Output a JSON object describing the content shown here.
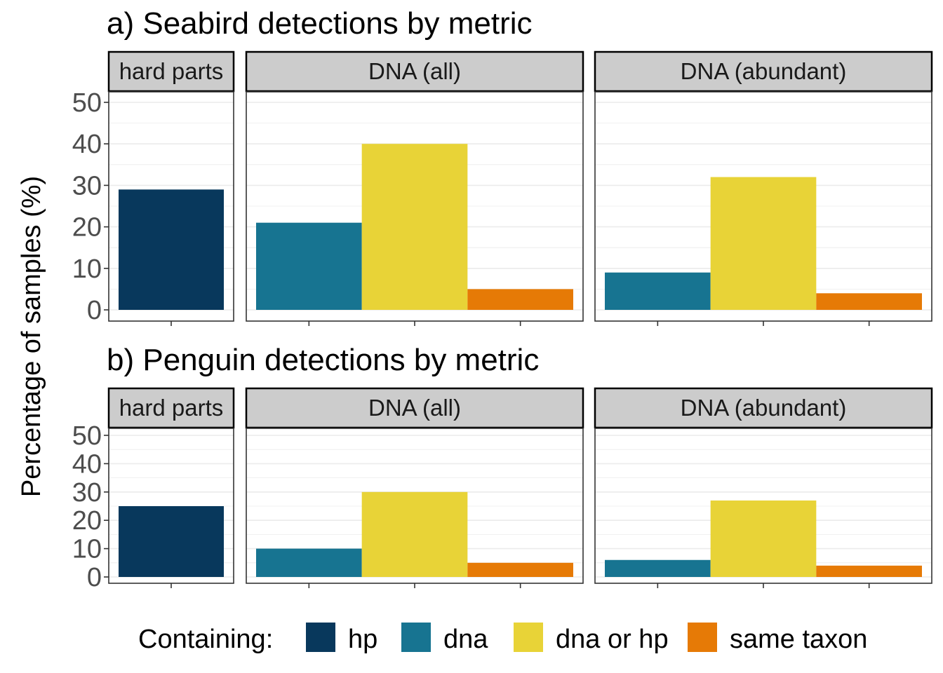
{
  "y_axis_label": "Percentage of samples (%)",
  "legend": {
    "title": "Containing:",
    "items": [
      {
        "key": "hp",
        "label": "hp",
        "color": "#08385c"
      },
      {
        "key": "dna",
        "label": "dna",
        "color": "#177491"
      },
      {
        "key": "dna_or_hp",
        "label": "dna or hp",
        "color": "#e8d337"
      },
      {
        "key": "same_taxon",
        "label": "same taxon",
        "color": "#e67a06"
      }
    ]
  },
  "chart_data": [
    {
      "type": "bar",
      "title": "a) Seabird detections by metric",
      "ylabel": "Percentage of samples (%)",
      "ylim": [
        0,
        50
      ],
      "yticks": [
        0,
        10,
        20,
        30,
        40,
        50
      ],
      "grid": true,
      "legend_position": "bottom",
      "facets": [
        {
          "label": "hard parts",
          "bars": [
            {
              "key": "hp",
              "value": 29
            }
          ]
        },
        {
          "label": "DNA (all)",
          "bars": [
            {
              "key": "dna",
              "value": 21
            },
            {
              "key": "dna_or_hp",
              "value": 40
            },
            {
              "key": "same_taxon",
              "value": 5
            }
          ]
        },
        {
          "label": "DNA (abundant)",
          "bars": [
            {
              "key": "dna",
              "value": 9
            },
            {
              "key": "dna_or_hp",
              "value": 32
            },
            {
              "key": "same_taxon",
              "value": 4
            }
          ]
        }
      ]
    },
    {
      "type": "bar",
      "title": "b) Penguin detections by metric",
      "ylabel": "Percentage of samples (%)",
      "ylim": [
        0,
        50
      ],
      "yticks": [
        0,
        10,
        20,
        30,
        40,
        50
      ],
      "grid": true,
      "legend_position": "bottom",
      "facets": [
        {
          "label": "hard parts",
          "bars": [
            {
              "key": "hp",
              "value": 25
            }
          ]
        },
        {
          "label": "DNA (all)",
          "bars": [
            {
              "key": "dna",
              "value": 10
            },
            {
              "key": "dna_or_hp",
              "value": 30
            },
            {
              "key": "same_taxon",
              "value": 5
            }
          ]
        },
        {
          "label": "DNA (abundant)",
          "bars": [
            {
              "key": "dna",
              "value": 6
            },
            {
              "key": "dna_or_hp",
              "value": 27
            },
            {
              "key": "same_taxon",
              "value": 4
            }
          ]
        }
      ]
    }
  ]
}
